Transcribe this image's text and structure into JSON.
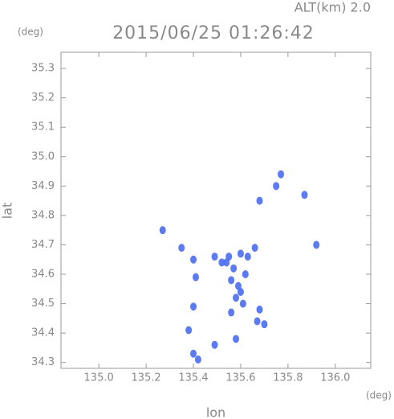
{
  "chart_data": {
    "type": "scatter",
    "title": "2015/06/25 01:26:42",
    "subtitle": "ALT(km) 2.0",
    "y_unit": "(deg)",
    "x_unit": "(deg)",
    "xlabel": "lon",
    "ylabel": "lat",
    "x": [
      135.27,
      135.77,
      135.75,
      135.87,
      135.68,
      135.92,
      135.35,
      135.4,
      135.41,
      135.49,
      135.52,
      135.55,
      135.57,
      135.6,
      135.63,
      135.66,
      135.56,
      135.59,
      135.62,
      135.58,
      135.61,
      135.56,
      135.6,
      135.4,
      135.38,
      135.4,
      135.42,
      135.49,
      135.58,
      135.67,
      135.68,
      135.7,
      135.54
    ],
    "values": [
      34.75,
      34.94,
      34.9,
      34.87,
      34.85,
      34.7,
      34.69,
      34.65,
      34.59,
      34.66,
      34.64,
      34.66,
      34.62,
      34.67,
      34.66,
      34.69,
      34.58,
      34.56,
      34.6,
      34.52,
      34.5,
      34.47,
      34.54,
      34.49,
      34.41,
      34.33,
      34.31,
      34.36,
      34.38,
      34.44,
      34.48,
      34.43,
      34.64
    ],
    "color": "#4a6cf0",
    "xlim": [
      134.84,
      136.15
    ],
    "ylim": [
      34.28,
      35.355
    ],
    "xticks": [
      {
        "value": 135.0,
        "label": "135.0"
      },
      135.2,
      135.4,
      135.6,
      135.8,
      {
        "value": 136.0,
        "label": "136.0"
      }
    ],
    "yticks": [
      34.3,
      34.4,
      34.5,
      34.6,
      34.7,
      34.8,
      34.9,
      {
        "value": 35.0,
        "label": "35.0"
      },
      35.1,
      35.2,
      35.3
    ],
    "grid": false
  }
}
